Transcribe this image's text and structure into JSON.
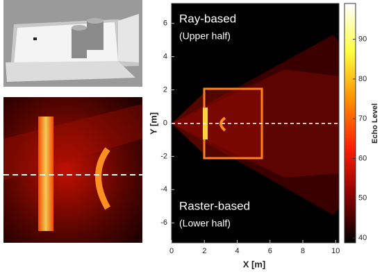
{
  "chart_data": {
    "type": "heatmap",
    "xlabel": "X [m]",
    "ylabel": "Y [m]",
    "colorbar_label": "Echo Level",
    "annotations": [
      "Ray-based",
      "(Upper half)",
      "Raster-based",
      "(Lower half)"
    ],
    "xlim": [
      0,
      10.2
    ],
    "xticks": [
      0,
      2,
      4,
      6,
      8,
      10
    ],
    "ylim": [
      -7.2,
      7.2
    ],
    "yticks": [
      -6,
      -4,
      -2,
      0,
      2,
      4,
      6
    ],
    "clim": [
      38.8,
      99
    ],
    "cticks": [
      40,
      50,
      60,
      70,
      80,
      90
    ],
    "colormap": [
      "#000000",
      "#8b0000",
      "#ff2000",
      "#ff9000",
      "#ffff40",
      "#ffffff"
    ]
  }
}
